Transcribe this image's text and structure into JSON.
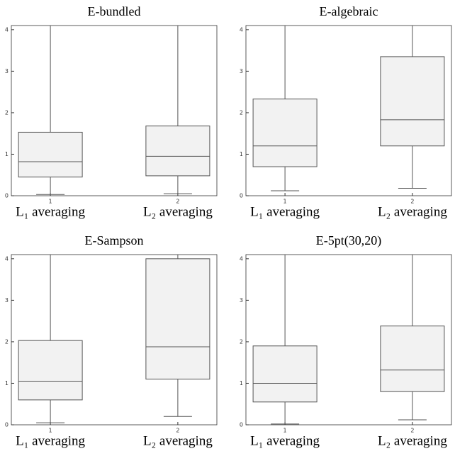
{
  "chart_data": [
    {
      "type": "box",
      "title": "E-bundled",
      "categories": [
        "1",
        "2"
      ],
      "x_labels": [
        "L₁ averaging",
        "L₂ averaging"
      ],
      "boxes": [
        {
          "min": 0.03,
          "q1": 0.45,
          "median": 0.82,
          "q3": 1.53,
          "max": 4.1
        },
        {
          "min": 0.05,
          "q1": 0.48,
          "median": 0.95,
          "q3": 1.68,
          "max": 4.1
        }
      ],
      "ylim": [
        0,
        4.1
      ],
      "yticks": [
        0,
        1,
        2,
        3,
        4
      ],
      "color": "#f2f2f2"
    },
    {
      "type": "box",
      "title": "E-algebraic",
      "categories": [
        "1",
        "2"
      ],
      "x_labels": [
        "L₁ averaging",
        "L₂ averaging"
      ],
      "boxes": [
        {
          "min": 0.12,
          "q1": 0.7,
          "median": 1.2,
          "q3": 2.33,
          "max": 4.1
        },
        {
          "min": 0.18,
          "q1": 1.2,
          "median": 1.83,
          "q3": 3.35,
          "max": 4.1
        }
      ],
      "ylim": [
        0,
        4.1
      ],
      "yticks": [
        0,
        1,
        2,
        3,
        4
      ],
      "color": "#f2f2f2"
    },
    {
      "type": "box",
      "title": "E-Sampson",
      "categories": [
        "1",
        "2"
      ],
      "x_labels": [
        "L₁ averaging",
        "L₂ averaging"
      ],
      "boxes": [
        {
          "min": 0.05,
          "q1": 0.6,
          "median": 1.05,
          "q3": 2.03,
          "max": 4.1
        },
        {
          "min": 0.2,
          "q1": 1.1,
          "median": 1.88,
          "q3": 4.0,
          "max": 4.1
        }
      ],
      "ylim": [
        0,
        4.1
      ],
      "yticks": [
        0,
        1,
        2,
        3,
        4
      ],
      "color": "#f2f2f2"
    },
    {
      "type": "box",
      "title": "E-5pt(30,20)",
      "categories": [
        "1",
        "2"
      ],
      "x_labels": [
        "L₁ averaging",
        "L₂ averaging"
      ],
      "boxes": [
        {
          "min": 0.02,
          "q1": 0.55,
          "median": 1.0,
          "q3": 1.9,
          "max": 4.1
        },
        {
          "min": 0.12,
          "q1": 0.8,
          "median": 1.32,
          "q3": 2.38,
          "max": 4.1
        }
      ],
      "ylim": [
        0,
        4.1
      ],
      "yticks": [
        0,
        1,
        2,
        3,
        4
      ],
      "color": "#f2f2f2"
    }
  ]
}
